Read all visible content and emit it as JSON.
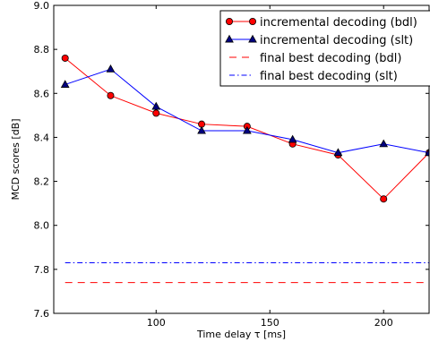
{
  "chart_data": {
    "type": "line",
    "title": "",
    "xlabel": "Time delay τ [ms]",
    "ylabel": "MCD scores [dB]",
    "xlim": [
      55,
      220
    ],
    "ylim": [
      7.6,
      9.0
    ],
    "xticks": [
      100,
      150,
      200
    ],
    "xtick_labels": [
      "100",
      "150",
      "200"
    ],
    "yticks": [
      7.6,
      7.8,
      8.0,
      8.2,
      8.4,
      8.6,
      8.8,
      9.0
    ],
    "ytick_labels": [
      "7.6",
      "7.8",
      "8.0",
      "8.2",
      "8.4",
      "8.6",
      "8.8",
      "9.0"
    ],
    "grid": false,
    "legend_position": "top-right",
    "series": [
      {
        "name": "incremental decoding (bdl)",
        "style": "line-circle",
        "color": "#ff0000",
        "marker_color": "#ff0000",
        "x": [
          60,
          80,
          100,
          120,
          140,
          160,
          180,
          200,
          220
        ],
        "y": [
          8.76,
          8.59,
          8.51,
          8.46,
          8.45,
          8.37,
          8.32,
          8.12,
          8.33
        ]
      },
      {
        "name": "incremental decoding (slt)",
        "style": "line-triangle",
        "color": "#0000ff",
        "marker_color": "#000080",
        "x": [
          60,
          80,
          100,
          120,
          140,
          160,
          180,
          200,
          220
        ],
        "y": [
          8.64,
          8.71,
          8.54,
          8.43,
          8.43,
          8.39,
          8.33,
          8.37,
          8.33
        ]
      },
      {
        "name": "final best decoding (bdl)",
        "style": "dashed",
        "color": "#ff0000",
        "x": [
          60,
          220
        ],
        "y": [
          7.74,
          7.74
        ]
      },
      {
        "name": "final best decoding (slt)",
        "style": "dashdot",
        "color": "#0000ff",
        "x": [
          60,
          220
        ],
        "y": [
          7.83,
          7.83
        ]
      }
    ]
  }
}
